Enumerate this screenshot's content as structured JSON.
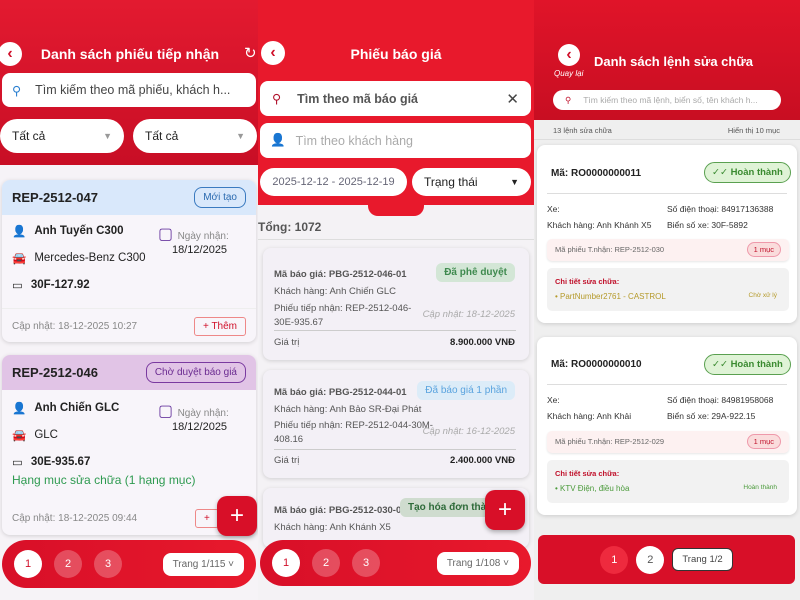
{
  "screen1": {
    "title": "Danh sách phiếu tiếp nhận",
    "search_placeholder": "Tìm kiếm theo mã phiếu, khách h...",
    "filter1": "Tất cả",
    "filter2": "Tất cả",
    "cards": [
      {
        "code": "REP-2512-047",
        "status": "Mới tạo",
        "customer": "Anh Tuyến C300",
        "vehicle": "Mercedes-Benz C300",
        "plate": "30F-127.92",
        "date_label": "Ngày nhận:",
        "date": "18/12/2025",
        "updated": "Cập nhật: 18-12-2025 10:27",
        "add_label": "+ Thêm"
      },
      {
        "code": "REP-2512-046",
        "status": "Chờ duyệt báo giá",
        "customer": "Anh Chiến GLC",
        "vehicle": "GLC",
        "plate": "30E-935.67",
        "date_label": "Ngày nhận:",
        "date": "18/12/2025",
        "items": "Hạng mục sửa chữa (1 hạng mục)",
        "updated": "Cập nhật: 18-12-2025 09:44",
        "add_label": "+"
      }
    ],
    "pages": [
      "1",
      "2",
      "3"
    ],
    "page_select": "Trang 1/115"
  },
  "screen2": {
    "title": "Phiếu báo giá",
    "search_code": "Tìm theo mã báo giá",
    "search_customer_placeholder": "Tìm theo khách hàng",
    "date_range": "2025-12-12 - 2025-12-19",
    "status_filter": "Trạng thái",
    "total": "Tổng: 1072",
    "quotes": [
      {
        "code": "Mã báo giá: PBG-2512-046-01",
        "status": "Đã phê duyệt",
        "customer": "Khách hàng: Anh Chiến GLC",
        "receipt": "Phiếu tiếp nhận: REP-2512-046-30E-935.67",
        "updated": "Cập nhật: 18-12-2025",
        "value_label": "Giá trị",
        "value": "8.900.000 VNĐ",
        "color": "#d3e6d6",
        "text": "#3f8a4f"
      },
      {
        "code": "Mã báo giá: PBG-2512-044-01",
        "status": "Đã báo giá 1 phần",
        "customer": "Khách hàng: Anh Bảo SR-Đại Phát",
        "receipt": "Phiếu tiếp nhận: REP-2512-044-30M-408.16",
        "updated": "Cập nhật: 16-12-2025",
        "value_label": "Giá trị",
        "value": "2.400.000 VNĐ",
        "color": "#dcecf8",
        "text": "#5aa3de"
      },
      {
        "code": "Mã báo giá: PBG-2512-030-01",
        "status": "Tạo hóa đơn thành",
        "customer": "Khách hàng: Anh Khánh X5",
        "color": "#cfdccf",
        "text": "#2e6b3a"
      }
    ],
    "pages": [
      "1",
      "2",
      "3"
    ],
    "page_select": "Trang 1/108"
  },
  "screen3": {
    "back_label": "Quay lại",
    "title": "Danh sách lệnh sửa chữa",
    "search_placeholder": "Tìm kiếm theo mã lệnh, biển số, tên khách h...",
    "count": "13 lệnh sửa chữa",
    "showing": "Hiển thị 10 mục",
    "orders": [
      {
        "code": "Mã: RO0000000011",
        "status": "Hoàn thành",
        "vehicle": "Xe:",
        "phone": "Số điện thoại: 84917136388",
        "customer": "Khách hàng: Anh Khánh X5",
        "plate": "Biển số xe: 30F-5892",
        "receipt": "Mã phiếu T.nhận: REP-2512-030",
        "item_count": "1 mục",
        "detail_label": "Chi tiết sửa chữa:",
        "detail": "• PartNumber2761 - CASTROL",
        "detail_status": "Chờ xử lý",
        "detail_color": "#b59a2a"
      },
      {
        "code": "Mã: RO0000000010",
        "status": "Hoàn thành",
        "vehicle": "Xe:",
        "phone": "Số điện thoại: 84981958068",
        "customer": "Khách hàng: Anh Khải",
        "plate": "Biển số xe: 29A-922.15",
        "receipt": "Mã phiếu T.nhận: REP-2512-029",
        "item_count": "1 mục",
        "detail_label": "Chi tiết sửa chữa:",
        "detail": "• KTV Điện, điều hòa",
        "detail_status": "Hoàn thành",
        "detail_color": "#4a9a3a"
      }
    ],
    "pages": [
      "1",
      "2"
    ],
    "page_select": "Trang 1/2"
  }
}
